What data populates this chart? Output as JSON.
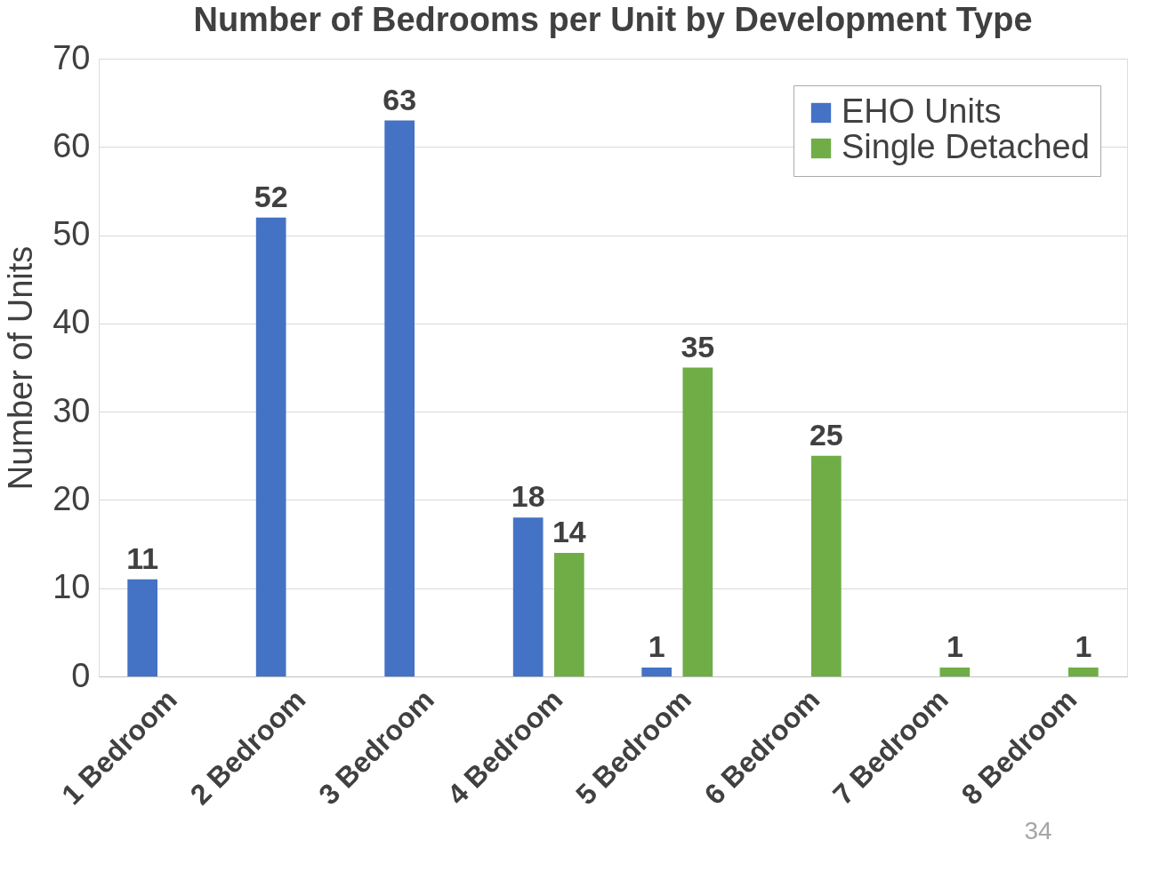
{
  "chart_data": {
    "type": "bar",
    "title": "Number of Bedrooms per Unit by Development Type",
    "ylabel": "Number of Units",
    "categories": [
      "1 Bedroom",
      "2 Bedroom",
      "3 Bedroom",
      "4 Bedroom",
      "5 Bedroom",
      "6 Bedroom",
      "7 Bedroom",
      "8 Bedroom"
    ],
    "series": [
      {
        "name": "EHO Units",
        "color": "#4472c4",
        "values": [
          11,
          52,
          63,
          18,
          1,
          null,
          null,
          null
        ]
      },
      {
        "name": "Single Detached",
        "color": "#70ad47",
        "values": [
          null,
          null,
          null,
          14,
          35,
          25,
          1,
          1
        ]
      }
    ],
    "ylim": [
      0,
      70
    ],
    "yticks": [
      0,
      10,
      20,
      30,
      40,
      50,
      60,
      70
    ],
    "grid": "y",
    "legend": "top right",
    "data_labels": true,
    "annotations": [
      "34"
    ]
  }
}
